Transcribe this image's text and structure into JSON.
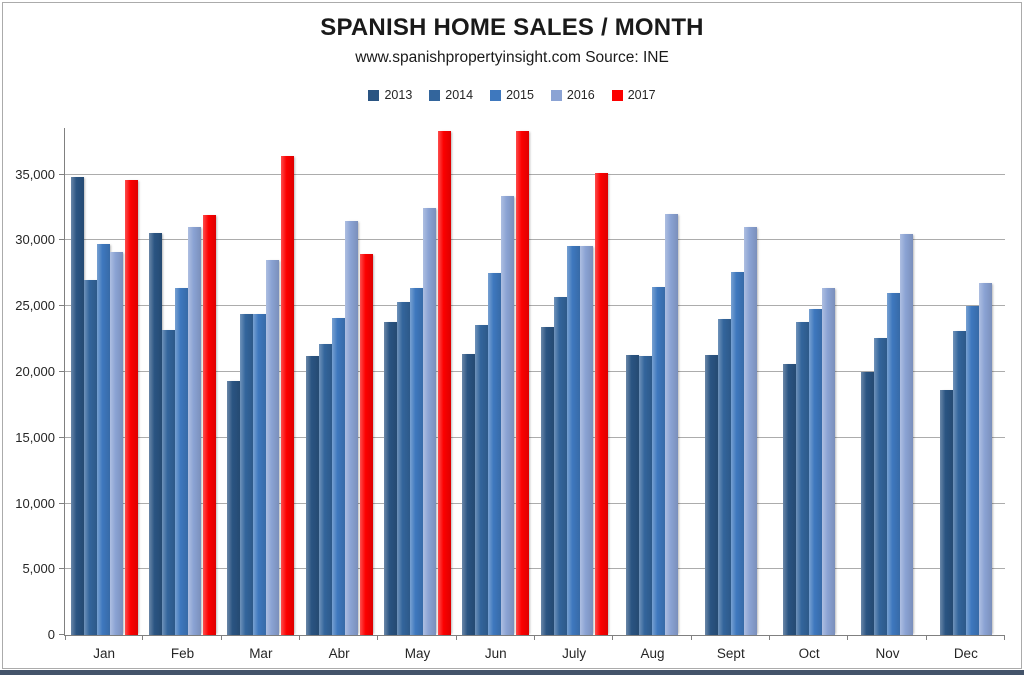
{
  "chart_data": {
    "type": "bar",
    "title": "SPANISH HOME SALES / MONTH",
    "subtitle": "www.spanishpropertyinsight.com Source: INE",
    "categories": [
      "Jan",
      "Feb",
      "Mar",
      "Abr",
      "May",
      "Jun",
      "July",
      "Aug",
      "Sept",
      "Oct",
      "Nov",
      "Dec"
    ],
    "series": [
      {
        "name": "2013",
        "color": "#2A5482",
        "highlight": false,
        "values": [
          34800,
          30600,
          19300,
          21200,
          23800,
          21400,
          23400,
          21300,
          21300,
          20600,
          20000,
          18600
        ]
      },
      {
        "name": "2014",
        "color": "#33659C",
        "highlight": false,
        "values": [
          27000,
          23200,
          24400,
          22100,
          25300,
          23600,
          25700,
          21200,
          24000,
          23800,
          22600,
          23100
        ]
      },
      {
        "name": "2015",
        "color": "#3E78BE",
        "highlight": false,
        "values": [
          29700,
          26400,
          24400,
          24100,
          26400,
          27500,
          29600,
          26500,
          27600,
          24800,
          26000,
          25000
        ]
      },
      {
        "name": "2016",
        "color": "#8BA3D4",
        "highlight": false,
        "values": [
          29100,
          31000,
          28500,
          31500,
          32500,
          33400,
          29600,
          32000,
          31000,
          26400,
          30500,
          26800
        ]
      },
      {
        "name": "2017",
        "color": "#FC0000",
        "highlight": true,
        "values": [
          34600,
          31900,
          36400,
          29000,
          38300,
          38300,
          35100,
          null,
          null,
          null,
          null,
          null
        ]
      }
    ],
    "y_ticks": [
      {
        "value": 0,
        "label": "0"
      },
      {
        "value": 5000,
        "label": "5,000"
      },
      {
        "value": 10000,
        "label": "10,000"
      },
      {
        "value": 15000,
        "label": "15,000"
      },
      {
        "value": 20000,
        "label": "20,000"
      },
      {
        "value": 25000,
        "label": "25,000"
      },
      {
        "value": 30000,
        "label": "30,000"
      },
      {
        "value": 35000,
        "label": "35,000"
      }
    ],
    "ylim": [
      0,
      38400
    ],
    "grid": true,
    "legend_position": "top-center"
  },
  "colors": {
    "gridline": "#ACACAC",
    "axis": "#808080",
    "text": "#262626",
    "frame_border": "#ABABAB",
    "bottom_strip": "#44546A",
    "background": "#FFFFFF"
  }
}
